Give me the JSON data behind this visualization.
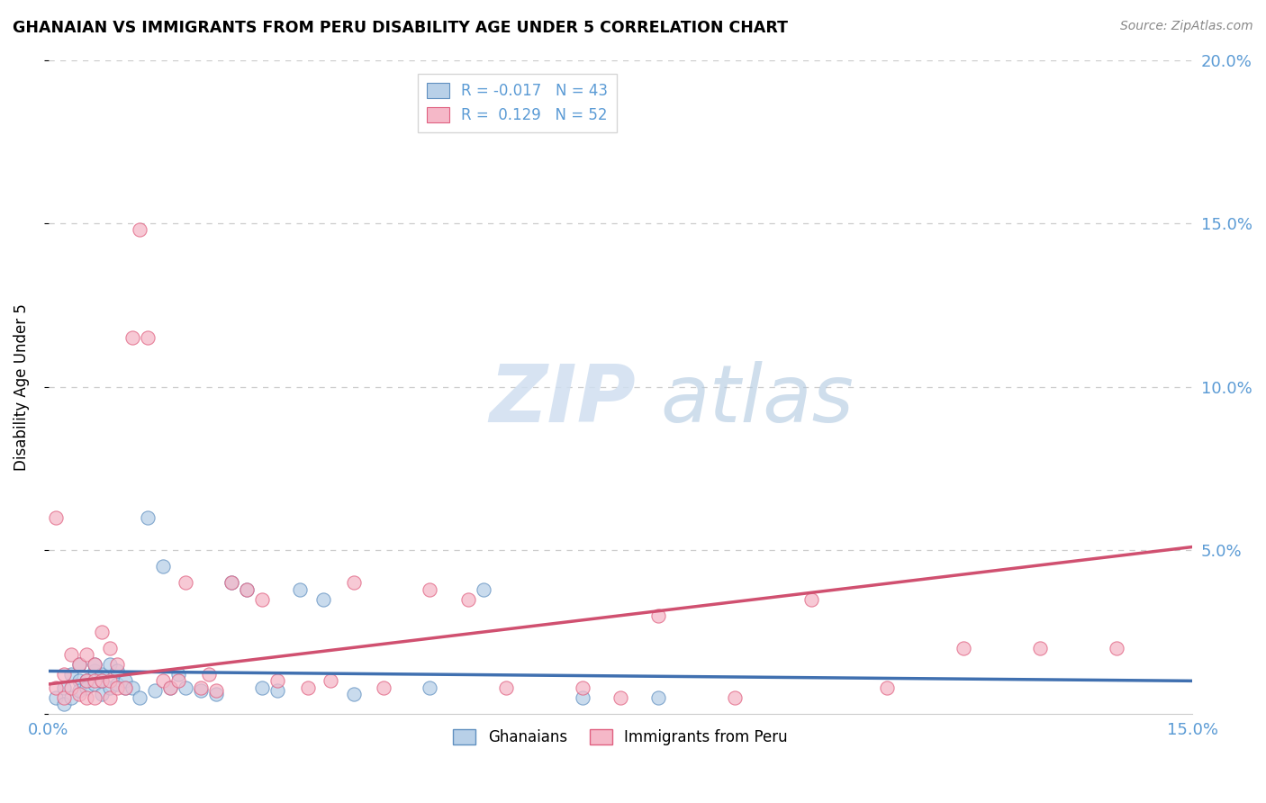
{
  "title": "GHANAIAN VS IMMIGRANTS FROM PERU DISABILITY AGE UNDER 5 CORRELATION CHART",
  "source": "Source: ZipAtlas.com",
  "ylabel": "Disability Age Under 5",
  "xlim": [
    0,
    0.15
  ],
  "ylim": [
    0,
    0.2
  ],
  "xticks": [
    0.0,
    0.05,
    0.1,
    0.15
  ],
  "yticks": [
    0.0,
    0.05,
    0.1,
    0.15,
    0.2
  ],
  "ytick_labels_right": [
    "",
    "5.0%",
    "10.0%",
    "15.0%",
    "20.0%"
  ],
  "xtick_labels": [
    "0.0%",
    "",
    "",
    "15.0%"
  ],
  "blue_fill": "#b8d0e8",
  "pink_fill": "#f5b8c8",
  "blue_edge": "#6090c0",
  "pink_edge": "#e06080",
  "blue_line_color": "#4070b0",
  "pink_line_color": "#d05070",
  "axis_color": "#5b9bd5",
  "label1": "Ghanaians",
  "label2": "Immigrants from Peru",
  "blue_R": -0.017,
  "blue_N": 43,
  "pink_R": 0.129,
  "pink_N": 52,
  "blue_trend": [
    0.0,
    0.15,
    0.013,
    0.01
  ],
  "pink_trend": [
    0.0,
    0.15,
    0.009,
    0.051
  ],
  "blue_scatter": [
    [
      0.001,
      0.005
    ],
    [
      0.002,
      0.008
    ],
    [
      0.002,
      0.003
    ],
    [
      0.003,
      0.012
    ],
    [
      0.003,
      0.005
    ],
    [
      0.004,
      0.01
    ],
    [
      0.004,
      0.007
    ],
    [
      0.004,
      0.015
    ],
    [
      0.005,
      0.01
    ],
    [
      0.005,
      0.008
    ],
    [
      0.006,
      0.013
    ],
    [
      0.006,
      0.009
    ],
    [
      0.006,
      0.015
    ],
    [
      0.007,
      0.01
    ],
    [
      0.007,
      0.006
    ],
    [
      0.007,
      0.012
    ],
    [
      0.008,
      0.008
    ],
    [
      0.008,
      0.015
    ],
    [
      0.009,
      0.009
    ],
    [
      0.009,
      0.013
    ],
    [
      0.01,
      0.008
    ],
    [
      0.01,
      0.01
    ],
    [
      0.011,
      0.008
    ],
    [
      0.012,
      0.005
    ],
    [
      0.013,
      0.06
    ],
    [
      0.014,
      0.007
    ],
    [
      0.015,
      0.045
    ],
    [
      0.016,
      0.008
    ],
    [
      0.017,
      0.012
    ],
    [
      0.018,
      0.008
    ],
    [
      0.02,
      0.007
    ],
    [
      0.022,
      0.006
    ],
    [
      0.024,
      0.04
    ],
    [
      0.026,
      0.038
    ],
    [
      0.028,
      0.008
    ],
    [
      0.03,
      0.007
    ],
    [
      0.033,
      0.038
    ],
    [
      0.036,
      0.035
    ],
    [
      0.04,
      0.006
    ],
    [
      0.05,
      0.008
    ],
    [
      0.057,
      0.038
    ],
    [
      0.07,
      0.005
    ],
    [
      0.08,
      0.005
    ]
  ],
  "pink_scatter": [
    [
      0.001,
      0.06
    ],
    [
      0.001,
      0.008
    ],
    [
      0.002,
      0.012
    ],
    [
      0.002,
      0.005
    ],
    [
      0.003,
      0.018
    ],
    [
      0.003,
      0.008
    ],
    [
      0.004,
      0.015
    ],
    [
      0.004,
      0.006
    ],
    [
      0.005,
      0.018
    ],
    [
      0.005,
      0.01
    ],
    [
      0.005,
      0.005
    ],
    [
      0.006,
      0.015
    ],
    [
      0.006,
      0.01
    ],
    [
      0.006,
      0.005
    ],
    [
      0.007,
      0.025
    ],
    [
      0.007,
      0.01
    ],
    [
      0.008,
      0.02
    ],
    [
      0.008,
      0.01
    ],
    [
      0.008,
      0.005
    ],
    [
      0.009,
      0.015
    ],
    [
      0.009,
      0.008
    ],
    [
      0.01,
      0.008
    ],
    [
      0.011,
      0.115
    ],
    [
      0.012,
      0.148
    ],
    [
      0.013,
      0.115
    ],
    [
      0.015,
      0.01
    ],
    [
      0.016,
      0.008
    ],
    [
      0.017,
      0.01
    ],
    [
      0.018,
      0.04
    ],
    [
      0.02,
      0.008
    ],
    [
      0.021,
      0.012
    ],
    [
      0.022,
      0.007
    ],
    [
      0.024,
      0.04
    ],
    [
      0.026,
      0.038
    ],
    [
      0.028,
      0.035
    ],
    [
      0.03,
      0.01
    ],
    [
      0.034,
      0.008
    ],
    [
      0.037,
      0.01
    ],
    [
      0.04,
      0.04
    ],
    [
      0.044,
      0.008
    ],
    [
      0.05,
      0.038
    ],
    [
      0.055,
      0.035
    ],
    [
      0.06,
      0.008
    ],
    [
      0.07,
      0.008
    ],
    [
      0.075,
      0.005
    ],
    [
      0.08,
      0.03
    ],
    [
      0.09,
      0.005
    ],
    [
      0.1,
      0.035
    ],
    [
      0.11,
      0.008
    ],
    [
      0.12,
      0.02
    ],
    [
      0.13,
      0.02
    ],
    [
      0.14,
      0.02
    ]
  ]
}
